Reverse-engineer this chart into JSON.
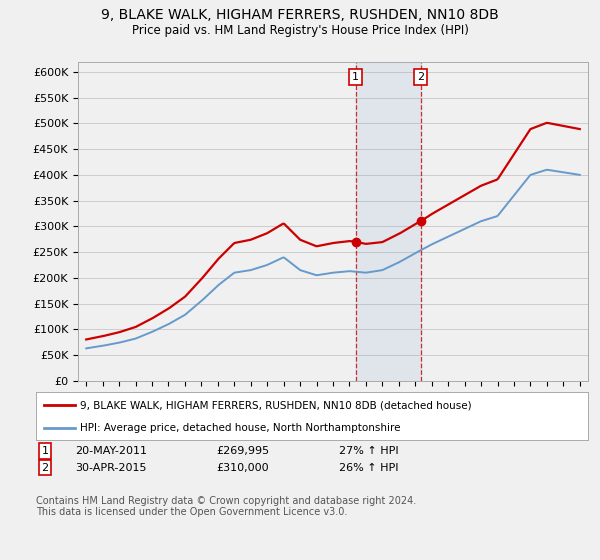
{
  "title": "9, BLAKE WALK, HIGHAM FERRERS, RUSHDEN, NN10 8DB",
  "subtitle": "Price paid vs. HM Land Registry's House Price Index (HPI)",
  "ylabel_ticks": [
    "£0",
    "£50K",
    "£100K",
    "£150K",
    "£200K",
    "£250K",
    "£300K",
    "£350K",
    "£400K",
    "£450K",
    "£500K",
    "£550K",
    "£600K"
  ],
  "ytick_values": [
    0,
    50000,
    100000,
    150000,
    200000,
    250000,
    300000,
    350000,
    400000,
    450000,
    500000,
    550000,
    600000
  ],
  "legend_line1": "9, BLAKE WALK, HIGHAM FERRERS, RUSHDEN, NN10 8DB (detached house)",
  "legend_line2": "HPI: Average price, detached house, North Northamptonshire",
  "annotation1_label": "1",
  "annotation1_date": "20-MAY-2011",
  "annotation1_price": "£269,995",
  "annotation1_hpi": "27% ↑ HPI",
  "annotation2_label": "2",
  "annotation2_date": "30-APR-2015",
  "annotation2_price": "£310,000",
  "annotation2_hpi": "26% ↑ HPI",
  "footnote": "Contains HM Land Registry data © Crown copyright and database right 2024.\nThis data is licensed under the Open Government Licence v3.0.",
  "sale1_x": 2011.38,
  "sale1_y": 269995,
  "sale2_x": 2015.33,
  "sale2_y": 310000,
  "vline1_x": 2011.38,
  "vline2_x": 2015.33,
  "red_color": "#cc0000",
  "blue_color": "#6699cc",
  "background_color": "#f0f0f0",
  "plot_bg_color": "#f0f0f0",
  "grid_color": "#cccccc",
  "xlim": [
    1994.5,
    2025.5
  ],
  "ylim": [
    0,
    620000
  ]
}
